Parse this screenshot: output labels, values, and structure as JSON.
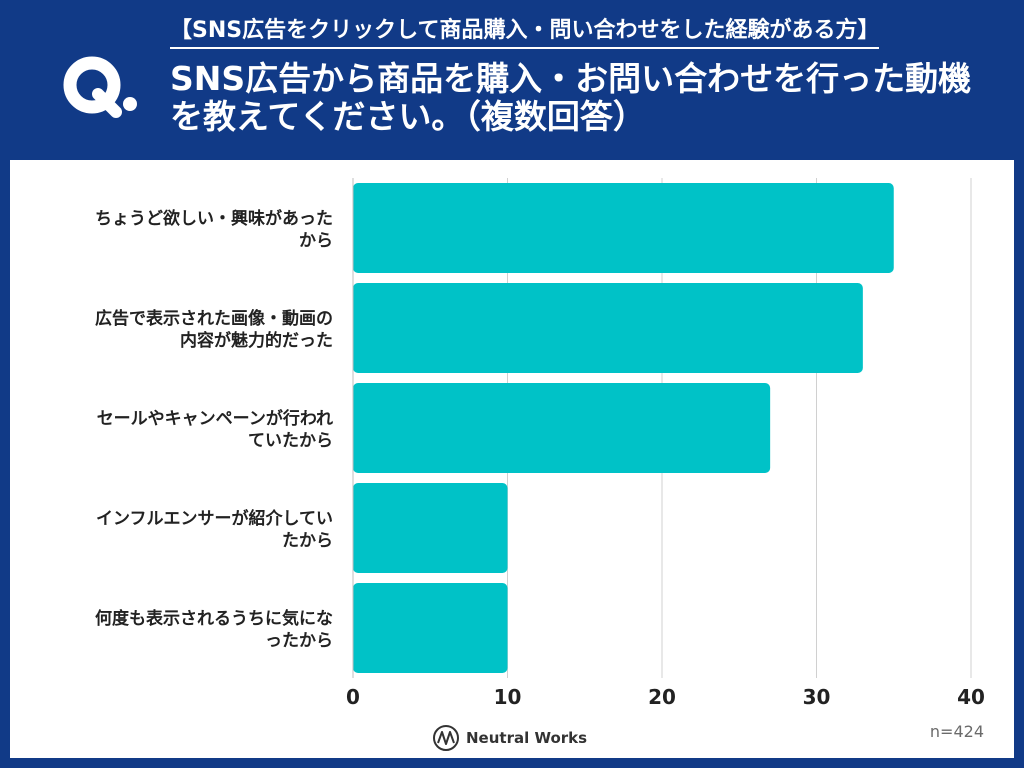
{
  "header": {
    "subtitle": "【SNS広告をクリックして商品購入・問い合わせをした経験がある方】",
    "title": "SNS広告から商品を購入・お問い合わせを行った動機を教えてください。（複数回答）",
    "q_label": "Q."
  },
  "chart_data": {
    "type": "bar",
    "orientation": "horizontal",
    "categories": [
      [
        "ちょうど欲しい・興味があった",
        "から"
      ],
      [
        "広告で表示された画像・動画の",
        "内容が魅力的だった"
      ],
      [
        "セールやキャンペーンが行われ",
        "ていたから"
      ],
      [
        "インフルエンサーが紹介してい",
        "たから"
      ],
      [
        "何度も表示されるうちに気にな",
        "ったから"
      ]
    ],
    "values": [
      35,
      33,
      27,
      10,
      10
    ],
    "xlim": [
      0,
      40
    ],
    "xticks": [
      "0",
      "10",
      "20",
      "30",
      "40"
    ],
    "grid": true,
    "bar_color": "#00c2c7"
  },
  "footer": {
    "n_note": "n=424",
    "brand": "Neutral Works"
  }
}
